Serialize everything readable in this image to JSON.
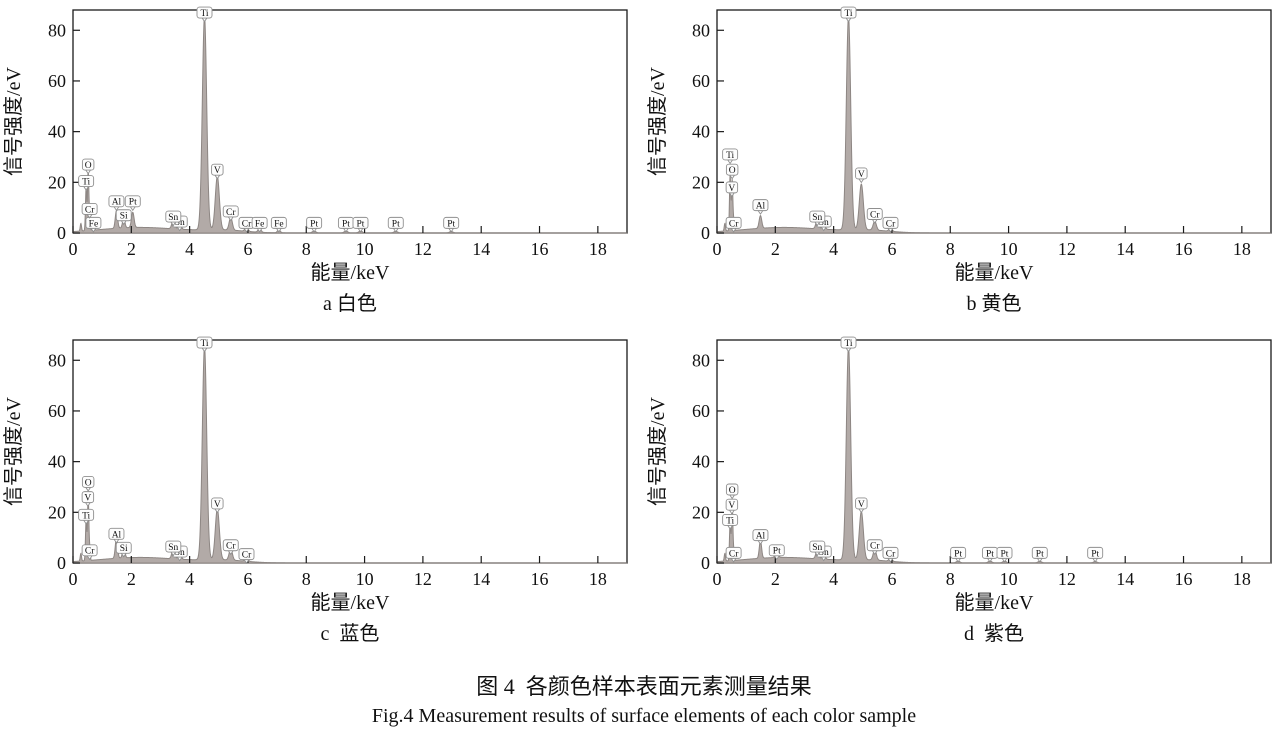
{
  "figure": {
    "caption_zh": "图 4  各颜色样本表面元素测量结果",
    "caption_en": "Fig.4 Measurement results of surface elements of each color sample"
  },
  "axes": {
    "xlabel": "能量/keV",
    "ylabel": "信号强度/eV",
    "x_ticks": [
      0,
      2,
      4,
      6,
      8,
      10,
      12,
      14,
      16,
      18
    ],
    "y_ticks": [
      0,
      20,
      40,
      60,
      80
    ],
    "x_range": [
      0,
      19
    ],
    "y_range": [
      0,
      88
    ],
    "grid": false,
    "legend": "none"
  },
  "style": {
    "curve_fill": "#b2aaa7",
    "curve_stroke": "#8d8683",
    "tag_fill": "#fdfdfd",
    "tag_border": "#8f8f8f",
    "axis_color": "#1a1a1a",
    "text_color": "#111111"
  },
  "curve_background": [
    [
      2.2,
      2.3,
      1.4
    ],
    [
      1.0,
      5.2,
      0.75
    ]
  ],
  "chart_data": [
    {
      "id": "a",
      "type": "area",
      "caption": "a 白色",
      "color_name_zh": "白色",
      "xlabel": "能量/keV",
      "ylabel": "信号强度/eV",
      "peaks": [
        [
          0.27,
          3,
          0.022
        ],
        [
          0.45,
          17,
          0.022
        ],
        [
          0.52,
          24,
          0.022
        ],
        [
          0.57,
          6,
          0.02
        ],
        [
          0.7,
          2,
          0.03
        ],
        [
          1.49,
          7,
          0.04
        ],
        [
          1.74,
          4,
          0.04
        ],
        [
          2.05,
          6,
          0.045
        ],
        [
          3.44,
          3.5,
          0.05
        ],
        [
          3.66,
          2,
          0.05
        ],
        [
          4.51,
          84,
          0.075
        ],
        [
          4.95,
          21,
          0.07
        ],
        [
          5.41,
          5,
          0.055
        ],
        [
          5.95,
          1.8,
          0.05
        ],
        [
          6.4,
          1.5,
          0.05
        ],
        [
          7.06,
          1.2,
          0.05
        ],
        [
          8.27,
          0.8,
          0.06
        ],
        [
          9.36,
          0.8,
          0.06
        ],
        [
          9.86,
          0.8,
          0.06
        ],
        [
          11.07,
          0.7,
          0.06
        ],
        [
          12.97,
          0.6,
          0.06
        ]
      ],
      "element_labels": [
        {
          "el": "Fe",
          "x": 0.7,
          "y": 4
        },
        {
          "el": "Cr",
          "x": 0.57,
          "y": 9.5
        },
        {
          "el": "Ti",
          "x": 0.45,
          "y": 20.5
        },
        {
          "el": "O",
          "x": 0.52,
          "y": 27
        },
        {
          "el": "Si",
          "x": 1.74,
          "y": 7
        },
        {
          "el": "Al",
          "x": 1.49,
          "y": 12.5
        },
        {
          "el": "Pt",
          "x": 2.05,
          "y": 12.5
        },
        {
          "el": "Sn",
          "x": 3.66,
          "y": 4.5
        },
        {
          "el": "Sn",
          "x": 3.44,
          "y": 6.5
        },
        {
          "el": "Ti",
          "x": 4.51,
          "y": 87
        },
        {
          "el": "V",
          "x": 4.95,
          "y": 25
        },
        {
          "el": "Cr",
          "x": 5.41,
          "y": 8.5
        },
        {
          "el": "Cr",
          "x": 5.95,
          "y": 4
        },
        {
          "el": "Fe",
          "x": 6.4,
          "y": 4
        },
        {
          "el": "Fe",
          "x": 7.06,
          "y": 4
        },
        {
          "el": "Pt",
          "x": 8.27,
          "y": 4
        },
        {
          "el": "Pt",
          "x": 9.36,
          "y": 4
        },
        {
          "el": "Pt",
          "x": 9.86,
          "y": 4
        },
        {
          "el": "Pt",
          "x": 11.07,
          "y": 4
        },
        {
          "el": "Pt",
          "x": 12.97,
          "y": 4
        }
      ]
    },
    {
      "id": "b",
      "type": "area",
      "caption": "b 黄色",
      "color_name_zh": "黄色",
      "xlabel": "能量/keV",
      "ylabel": "信号强度/eV",
      "peaks": [
        [
          0.27,
          3,
          0.022
        ],
        [
          0.45,
          22,
          0.022
        ],
        [
          0.52,
          20,
          0.022
        ],
        [
          0.57,
          4,
          0.02
        ],
        [
          1.49,
          5,
          0.045
        ],
        [
          3.44,
          3.5,
          0.05
        ],
        [
          3.66,
          2,
          0.05
        ],
        [
          4.51,
          84,
          0.075
        ],
        [
          4.95,
          18,
          0.07
        ],
        [
          5.41,
          3.5,
          0.055
        ],
        [
          5.95,
          1.5,
          0.05
        ]
      ],
      "element_labels": [
        {
          "el": "Cr",
          "x": 0.57,
          "y": 4
        },
        {
          "el": "V",
          "x": 0.51,
          "y": 18
        },
        {
          "el": "O",
          "x": 0.52,
          "y": 25
        },
        {
          "el": "Ti",
          "x": 0.45,
          "y": 31
        },
        {
          "el": "Al",
          "x": 1.49,
          "y": 11
        },
        {
          "el": "Sn",
          "x": 3.66,
          "y": 4.5
        },
        {
          "el": "Sn",
          "x": 3.44,
          "y": 6.5
        },
        {
          "el": "Ti",
          "x": 4.51,
          "y": 87
        },
        {
          "el": "V",
          "x": 4.95,
          "y": 23.5
        },
        {
          "el": "Cr",
          "x": 5.41,
          "y": 7.5
        },
        {
          "el": "Cr",
          "x": 5.95,
          "y": 4
        }
      ]
    },
    {
      "id": "c",
      "type": "area",
      "caption": "c  蓝色",
      "color_name_zh": "蓝色",
      "xlabel": "能量/keV",
      "ylabel": "信号强度/eV",
      "peaks": [
        [
          0.27,
          3,
          0.022
        ],
        [
          0.45,
          16,
          0.022
        ],
        [
          0.52,
          26,
          0.022
        ],
        [
          0.57,
          5,
          0.02
        ],
        [
          1.49,
          8,
          0.04
        ],
        [
          1.74,
          4.5,
          0.04
        ],
        [
          3.44,
          4,
          0.05
        ],
        [
          3.66,
          2.2,
          0.05
        ],
        [
          4.51,
          84,
          0.075
        ],
        [
          4.95,
          20,
          0.07
        ],
        [
          5.41,
          4.5,
          0.055
        ],
        [
          5.95,
          1.6,
          0.05
        ]
      ],
      "element_labels": [
        {
          "el": "Cr",
          "x": 0.57,
          "y": 5
        },
        {
          "el": "Ti",
          "x": 0.45,
          "y": 19
        },
        {
          "el": "V",
          "x": 0.51,
          "y": 26
        },
        {
          "el": "O",
          "x": 0.52,
          "y": 32
        },
        {
          "el": "Si",
          "x": 1.74,
          "y": 6
        },
        {
          "el": "Al",
          "x": 1.49,
          "y": 11.5
        },
        {
          "el": "Sn",
          "x": 3.66,
          "y": 4.5
        },
        {
          "el": "Sn",
          "x": 3.44,
          "y": 6.5
        },
        {
          "el": "Ti",
          "x": 4.51,
          "y": 87
        },
        {
          "el": "V",
          "x": 4.95,
          "y": 23.5
        },
        {
          "el": "Cr",
          "x": 5.41,
          "y": 7
        },
        {
          "el": "Cr",
          "x": 5.95,
          "y": 3.5
        }
      ]
    },
    {
      "id": "d",
      "type": "area",
      "caption": "d  紫色",
      "color_name_zh": "紫色",
      "xlabel": "能量/keV",
      "ylabel": "信号强度/eV",
      "peaks": [
        [
          0.27,
          3,
          0.022
        ],
        [
          0.45,
          15,
          0.022
        ],
        [
          0.52,
          24,
          0.022
        ],
        [
          0.57,
          4,
          0.02
        ],
        [
          1.49,
          7,
          0.04
        ],
        [
          2.05,
          2.2,
          0.05
        ],
        [
          3.44,
          3.5,
          0.05
        ],
        [
          3.66,
          2,
          0.05
        ],
        [
          4.51,
          84,
          0.075
        ],
        [
          4.95,
          19,
          0.07
        ],
        [
          5.41,
          4,
          0.055
        ],
        [
          5.95,
          1.5,
          0.05
        ],
        [
          8.27,
          0.8,
          0.06
        ],
        [
          9.36,
          0.8,
          0.06
        ],
        [
          9.86,
          0.8,
          0.06
        ],
        [
          11.07,
          0.7,
          0.06
        ],
        [
          12.97,
          0.6,
          0.06
        ]
      ],
      "element_labels": [
        {
          "el": "Cr",
          "x": 0.57,
          "y": 4
        },
        {
          "el": "Ti",
          "x": 0.45,
          "y": 17
        },
        {
          "el": "V",
          "x": 0.51,
          "y": 23
        },
        {
          "el": "O",
          "x": 0.52,
          "y": 29
        },
        {
          "el": "Al",
          "x": 1.49,
          "y": 11
        },
        {
          "el": "Pt",
          "x": 2.05,
          "y": 5
        },
        {
          "el": "Sn",
          "x": 3.66,
          "y": 4.5
        },
        {
          "el": "Sn",
          "x": 3.44,
          "y": 6.5
        },
        {
          "el": "Ti",
          "x": 4.51,
          "y": 87
        },
        {
          "el": "V",
          "x": 4.95,
          "y": 23.5
        },
        {
          "el": "Cr",
          "x": 5.41,
          "y": 7
        },
        {
          "el": "Cr",
          "x": 5.95,
          "y": 4
        },
        {
          "el": "Pt",
          "x": 8.27,
          "y": 4
        },
        {
          "el": "Pt",
          "x": 9.36,
          "y": 4
        },
        {
          "el": "Pt",
          "x": 9.86,
          "y": 4
        },
        {
          "el": "Pt",
          "x": 11.07,
          "y": 4
        },
        {
          "el": "Pt",
          "x": 12.97,
          "y": 4
        }
      ]
    }
  ]
}
